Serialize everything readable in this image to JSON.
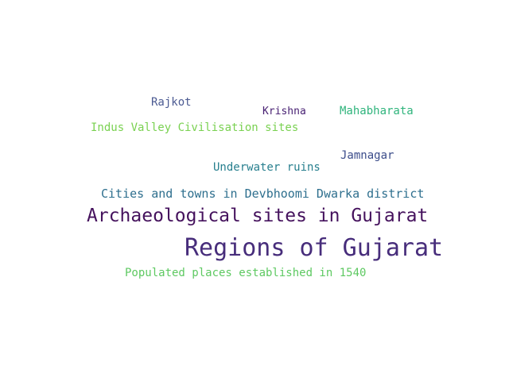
{
  "word_cloud": {
    "words": [
      {
        "text": "Rajkot",
        "color": "#4b5a92"
      },
      {
        "text": "Krishna",
        "color": "#482173"
      },
      {
        "text": "Mahabharata",
        "color": "#2fb47c"
      },
      {
        "text": "Indus Valley Civilisation sites",
        "color": "#7ad151"
      },
      {
        "text": "Jamnagar",
        "color": "#3b4c8a"
      },
      {
        "text": "Underwater ruins",
        "color": "#277f8e"
      },
      {
        "text": "Cities and towns in Devbhoomi Dwarka district",
        "color": "#2e6f8e"
      },
      {
        "text": "Archaeological sites in Gujarat",
        "color": "#45125d"
      },
      {
        "text": "Regions of Gujarat",
        "color": "#472d7b"
      },
      {
        "text": "Populated places established in 1540",
        "color": "#5ec962"
      }
    ]
  }
}
